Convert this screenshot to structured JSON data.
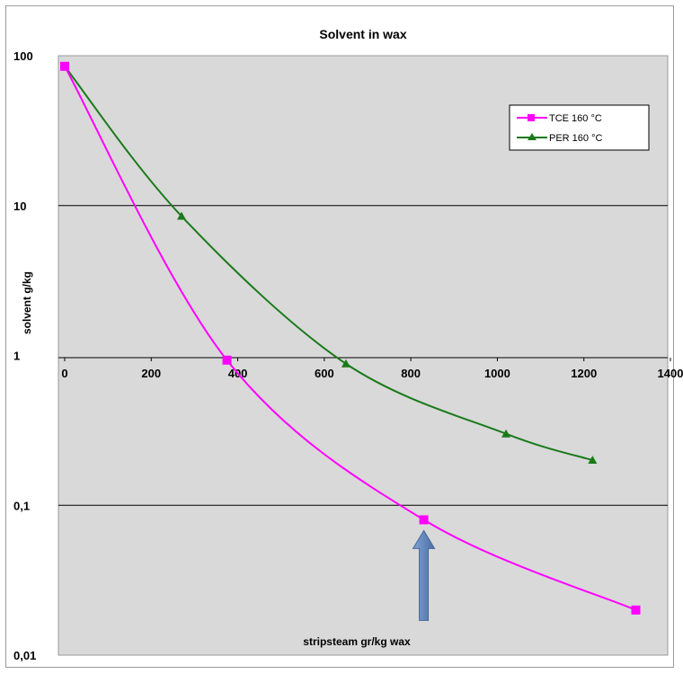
{
  "chart_data": {
    "type": "line",
    "title": "Solvent in wax",
    "xlabel": "stripsteam gr/kg wax",
    "ylabel": "solvent g/kg",
    "x_ticks": [
      "0",
      "200",
      "400",
      "600",
      "800",
      "1000",
      "1200",
      "1400"
    ],
    "y_ticks": [
      "100",
      "10",
      "1",
      "0,1",
      "0,01"
    ],
    "xlim": [
      0,
      1400
    ],
    "ylim": [
      0.01,
      100
    ],
    "y_scale": "log",
    "grid": "horizontal major gridlines",
    "legend_position": "top-right",
    "series": [
      {
        "name": "TCE  160 °C",
        "color": "#ff00ff",
        "marker": "square",
        "x": [
          0,
          375,
          830,
          1320
        ],
        "y": [
          85,
          0.93,
          0.08,
          0.02
        ]
      },
      {
        "name": "PER 160 °C",
        "color": "#1a7a1a",
        "marker": "triangle",
        "x": [
          0,
          270,
          650,
          1020,
          1220
        ],
        "y": [
          85,
          8.5,
          0.88,
          0.3,
          0.2
        ]
      }
    ],
    "annotation": {
      "type": "arrow",
      "color": "#5b82b8",
      "points_to_x": 830
    }
  }
}
